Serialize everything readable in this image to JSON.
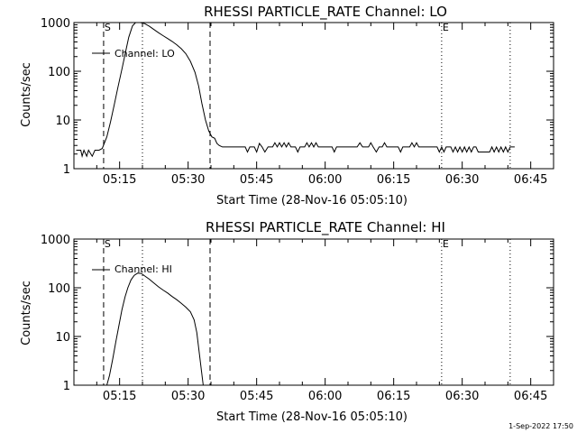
{
  "page": {
    "timestamp": "1-Sep-2022 17:50"
  },
  "colors": {
    "background": "#ffffff",
    "foreground": "#000000"
  },
  "chart_data": [
    {
      "type": "line",
      "title": "RHESSI PARTICLE_RATE Channel: LO",
      "xlabel": "Start Time (28-Nov-16 05:05:10)",
      "ylabel": "Counts/sec",
      "yscale": "log",
      "xlim_min": [
        0,
        105
      ],
      "ylim": [
        1,
        1000
      ],
      "x_ticks": [
        {
          "min": 10,
          "label": "05:15"
        },
        {
          "min": 25,
          "label": "05:30"
        },
        {
          "min": 40,
          "label": "05:45"
        },
        {
          "min": 55,
          "label": "06:00"
        },
        {
          "min": 70,
          "label": "06:15"
        },
        {
          "min": 85,
          "label": "06:30"
        },
        {
          "min": 100,
          "label": "06:45"
        }
      ],
      "y_ticks": [
        {
          "value": 1,
          "label": "1"
        },
        {
          "value": 10,
          "label": "10"
        },
        {
          "value": 100,
          "label": "100"
        },
        {
          "value": 1000,
          "label": "1000"
        }
      ],
      "grid": false,
      "legend": {
        "label": "Channel: LO",
        "position": "top-left"
      },
      "markers": [
        {
          "label": "S",
          "min": 6.5,
          "style": "dashed"
        },
        {
          "label": "",
          "min": 15.0,
          "style": "dotted"
        },
        {
          "label": "",
          "min": 29.8,
          "style": "dashed"
        },
        {
          "label": "E",
          "min": 80.5,
          "style": "dotted"
        },
        {
          "label": "",
          "min": 95.5,
          "style": "dotted"
        }
      ],
      "series": [
        {
          "name": "Channel: LO",
          "points": [
            [
              0.5,
              2.4
            ],
            [
              1.0,
              2.4
            ],
            [
              1.5,
              2.4
            ],
            [
              1.8,
              1.8
            ],
            [
              2.2,
              2.4
            ],
            [
              2.8,
              1.8
            ],
            [
              3.2,
              2.4
            ],
            [
              4.0,
              1.8
            ],
            [
              4.6,
              2.4
            ],
            [
              5.5,
              2.4
            ],
            [
              6.2,
              2.6
            ],
            [
              7.2,
              4.5
            ],
            [
              8.0,
              9
            ],
            [
              8.8,
              20
            ],
            [
              9.6,
              45
            ],
            [
              10.5,
              110
            ],
            [
              11.3,
              250
            ],
            [
              12.0,
              500
            ],
            [
              12.8,
              850
            ],
            [
              13.5,
              1050
            ],
            [
              14.5,
              1020
            ],
            [
              15.5,
              950
            ],
            [
              16.5,
              840
            ],
            [
              17.5,
              720
            ],
            [
              18.5,
              620
            ],
            [
              19.5,
              540
            ],
            [
              20.5,
              470
            ],
            [
              21.5,
              410
            ],
            [
              22.5,
              350
            ],
            [
              23.5,
              290
            ],
            [
              24.5,
              230
            ],
            [
              25.5,
              160
            ],
            [
              26.5,
              95
            ],
            [
              27.3,
              50
            ],
            [
              28.0,
              22
            ],
            [
              28.8,
              10
            ],
            [
              29.5,
              6
            ],
            [
              30.2,
              4.5
            ],
            [
              30.8,
              4.2
            ],
            [
              31.3,
              3.3
            ],
            [
              31.8,
              3.0
            ],
            [
              32.5,
              2.8
            ],
            [
              33.5,
              2.8
            ],
            [
              35.0,
              2.8
            ],
            [
              36.5,
              2.8
            ],
            [
              37.5,
              2.8
            ],
            [
              38.0,
              2.2
            ],
            [
              38.5,
              2.8
            ],
            [
              39.5,
              2.8
            ],
            [
              40.0,
              2.2
            ],
            [
              40.6,
              3.3
            ],
            [
              41.2,
              2.8
            ],
            [
              41.8,
              2.2
            ],
            [
              42.5,
              2.8
            ],
            [
              43.5,
              2.8
            ],
            [
              44.0,
              3.4
            ],
            [
              44.5,
              2.8
            ],
            [
              45.0,
              3.4
            ],
            [
              45.5,
              2.8
            ],
            [
              46.0,
              3.4
            ],
            [
              46.5,
              2.8
            ],
            [
              47.0,
              3.4
            ],
            [
              47.5,
              2.8
            ],
            [
              48.5,
              2.8
            ],
            [
              49.0,
              2.2
            ],
            [
              49.5,
              2.8
            ],
            [
              50.5,
              2.8
            ],
            [
              51.0,
              3.4
            ],
            [
              51.5,
              2.8
            ],
            [
              52.0,
              3.4
            ],
            [
              52.5,
              2.8
            ],
            [
              53.0,
              3.4
            ],
            [
              53.5,
              2.8
            ],
            [
              55.0,
              2.8
            ],
            [
              56.5,
              2.8
            ],
            [
              57.0,
              2.2
            ],
            [
              57.5,
              2.8
            ],
            [
              59.0,
              2.8
            ],
            [
              60.5,
              2.8
            ],
            [
              62.0,
              2.8
            ],
            [
              62.6,
              3.4
            ],
            [
              63.2,
              2.8
            ],
            [
              64.5,
              2.8
            ],
            [
              65.0,
              3.4
            ],
            [
              65.5,
              2.8
            ],
            [
              66.2,
              2.2
            ],
            [
              66.8,
              2.8
            ],
            [
              67.5,
              2.8
            ],
            [
              68.0,
              3.4
            ],
            [
              68.5,
              2.8
            ],
            [
              70.0,
              2.8
            ],
            [
              71.0,
              2.8
            ],
            [
              71.5,
              2.2
            ],
            [
              72.0,
              2.8
            ],
            [
              73.5,
              2.8
            ],
            [
              74.0,
              3.4
            ],
            [
              74.5,
              2.8
            ],
            [
              75.0,
              3.4
            ],
            [
              75.5,
              2.8
            ],
            [
              77.0,
              2.8
            ],
            [
              78.5,
              2.8
            ],
            [
              79.5,
              2.8
            ],
            [
              80.0,
              2.2
            ],
            [
              80.5,
              2.8
            ],
            [
              81.0,
              2.2
            ],
            [
              81.5,
              2.8
            ],
            [
              82.5,
              2.8
            ],
            [
              83.0,
              2.2
            ],
            [
              83.5,
              2.8
            ],
            [
              84.0,
              2.2
            ],
            [
              84.5,
              2.8
            ],
            [
              85.0,
              2.2
            ],
            [
              85.5,
              2.8
            ],
            [
              86.0,
              2.2
            ],
            [
              86.5,
              2.8
            ],
            [
              87.0,
              2.2
            ],
            [
              87.5,
              2.8
            ],
            [
              88.0,
              2.8
            ],
            [
              88.5,
              2.2
            ],
            [
              89.5,
              2.2
            ],
            [
              90.5,
              2.2
            ],
            [
              91.0,
              2.2
            ],
            [
              91.5,
              2.8
            ],
            [
              92.0,
              2.2
            ],
            [
              92.5,
              2.8
            ],
            [
              93.0,
              2.2
            ],
            [
              93.5,
              2.8
            ],
            [
              94.0,
              2.2
            ],
            [
              94.5,
              2.8
            ],
            [
              95.0,
              2.2
            ],
            [
              95.5,
              2.8
            ],
            [
              96.5,
              2.8
            ]
          ]
        }
      ]
    },
    {
      "type": "line",
      "title": "RHESSI PARTICLE_RATE Channel: HI",
      "xlabel": "Start Time (28-Nov-16 05:05:10)",
      "ylabel": "Counts/sec",
      "yscale": "log",
      "xlim_min": [
        0,
        105
      ],
      "ylim": [
        1,
        1000
      ],
      "x_ticks": [
        {
          "min": 10,
          "label": "05:15"
        },
        {
          "min": 25,
          "label": "05:30"
        },
        {
          "min": 40,
          "label": "05:45"
        },
        {
          "min": 55,
          "label": "06:00"
        },
        {
          "min": 70,
          "label": "06:15"
        },
        {
          "min": 85,
          "label": "06:30"
        },
        {
          "min": 100,
          "label": "06:45"
        }
      ],
      "y_ticks": [
        {
          "value": 1,
          "label": "1"
        },
        {
          "value": 10,
          "label": "10"
        },
        {
          "value": 100,
          "label": "100"
        },
        {
          "value": 1000,
          "label": "1000"
        }
      ],
      "grid": false,
      "legend": {
        "label": "Channel: HI",
        "position": "top-left"
      },
      "markers": [
        {
          "label": "S",
          "min": 6.5,
          "style": "dashed"
        },
        {
          "label": "",
          "min": 15.0,
          "style": "dotted"
        },
        {
          "label": "",
          "min": 29.8,
          "style": "dashed"
        },
        {
          "label": "E",
          "min": 80.5,
          "style": "dotted"
        },
        {
          "label": "",
          "min": 95.5,
          "style": "dotted"
        }
      ],
      "series": [
        {
          "name": "Channel: HI",
          "points": [
            [
              7.2,
              1.0
            ],
            [
              7.8,
              1.6
            ],
            [
              8.5,
              3.5
            ],
            [
              9.2,
              8
            ],
            [
              9.8,
              16
            ],
            [
              10.5,
              35
            ],
            [
              11.2,
              65
            ],
            [
              11.8,
              100
            ],
            [
              12.5,
              145
            ],
            [
              13.2,
              180
            ],
            [
              14.0,
              200
            ],
            [
              14.8,
              195
            ],
            [
              15.5,
              175
            ],
            [
              16.5,
              150
            ],
            [
              17.5,
              125
            ],
            [
              18.5,
              105
            ],
            [
              19.5,
              90
            ],
            [
              20.5,
              78
            ],
            [
              21.5,
              66
            ],
            [
              22.5,
              57
            ],
            [
              23.5,
              48
            ],
            [
              24.5,
              40
            ],
            [
              25.5,
              32
            ],
            [
              26.3,
              22
            ],
            [
              26.9,
              12
            ],
            [
              27.4,
              5
            ],
            [
              27.9,
              2
            ],
            [
              28.3,
              1.0
            ]
          ]
        }
      ]
    }
  ]
}
